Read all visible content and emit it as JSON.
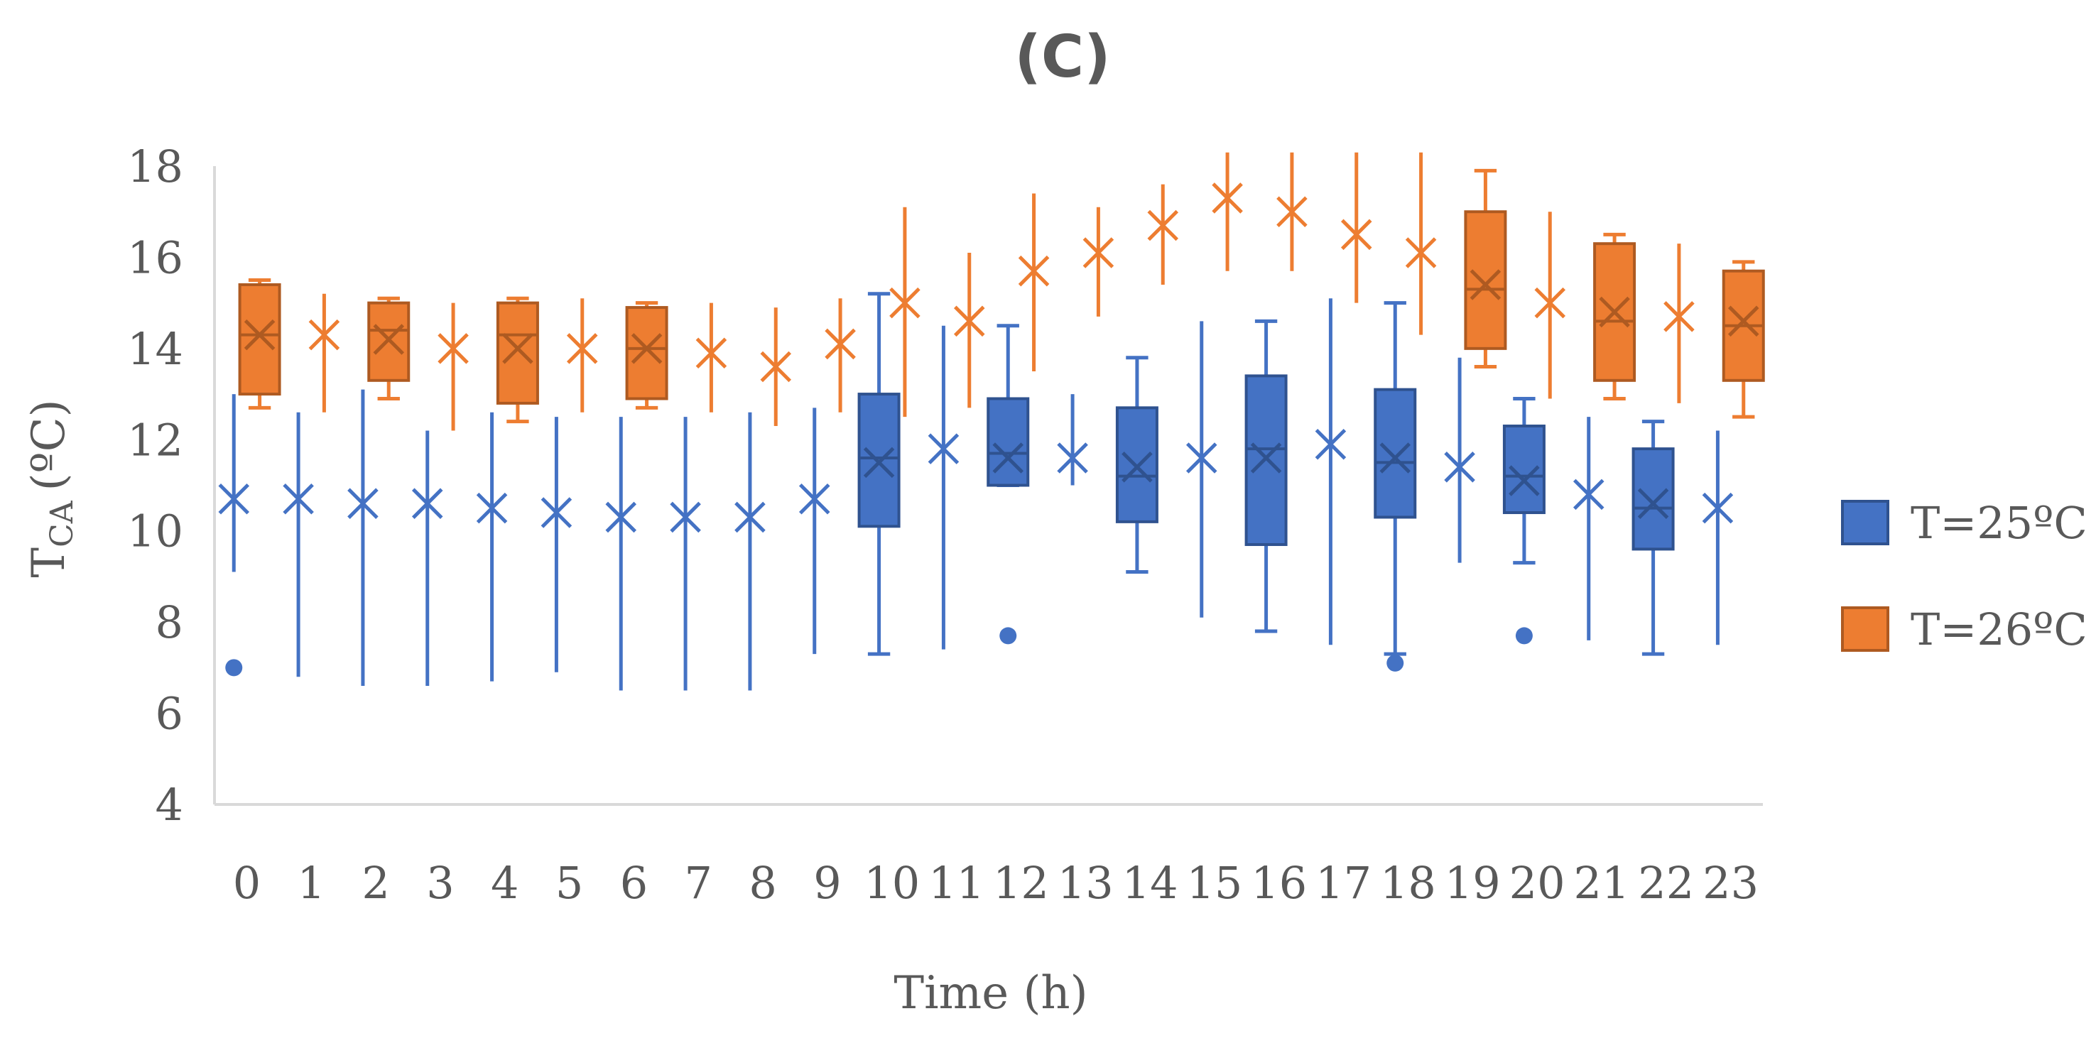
{
  "chart_data": {
    "type": "box",
    "title": "(C)",
    "ylabel": {
      "main": "T",
      "sub": "CA",
      "unit": "(ºC)"
    },
    "xlabel": "Time (h)",
    "ylim": [
      4,
      18
    ],
    "yticks": [
      "4",
      "6",
      "8",
      "10",
      "12",
      "14",
      "16",
      "18"
    ],
    "categories": [
      "0",
      "1",
      "2",
      "3",
      "4",
      "5",
      "6",
      "7",
      "8",
      "9",
      "10",
      "11",
      "12",
      "13",
      "14",
      "15",
      "16",
      "17",
      "18",
      "19",
      "20",
      "21",
      "22",
      "23"
    ],
    "grid": false,
    "legend_position": "right",
    "series": [
      {
        "name": "T=25ºC",
        "color": "#4472C4",
        "boxes": [
          {
            "x": 0,
            "min": 9.1,
            "max": 13.0,
            "mean": 10.7,
            "outliers": [
              7.0
            ]
          },
          {
            "x": 1,
            "min": 6.8,
            "max": 12.6,
            "mean": 10.7
          },
          {
            "x": 2,
            "min": 6.6,
            "max": 13.1,
            "mean": 10.6
          },
          {
            "x": 3,
            "min": 6.6,
            "max": 12.2,
            "mean": 10.6
          },
          {
            "x": 4,
            "min": 6.7,
            "max": 12.6,
            "mean": 10.5
          },
          {
            "x": 5,
            "min": 6.9,
            "max": 12.5,
            "mean": 10.4
          },
          {
            "x": 6,
            "min": 6.5,
            "max": 12.5,
            "mean": 10.3
          },
          {
            "x": 7,
            "min": 6.5,
            "max": 12.5,
            "mean": 10.3
          },
          {
            "x": 8,
            "min": 6.5,
            "max": 12.6,
            "mean": 10.3
          },
          {
            "x": 9,
            "min": 7.3,
            "max": 12.7,
            "mean": 10.7
          },
          {
            "x": 10,
            "min": 7.3,
            "max": 15.2,
            "q1": 10.1,
            "median": 11.6,
            "q3": 13.0,
            "mean": 11.5
          },
          {
            "x": 11,
            "min": 7.4,
            "max": 14.5,
            "mean": 11.8
          },
          {
            "x": 12,
            "min": 11.0,
            "max": 14.5,
            "q1": 11.0,
            "median": 11.7,
            "q3": 12.9,
            "mean": 11.6,
            "outliers": [
              7.7
            ]
          },
          {
            "x": 13,
            "min": 11.0,
            "max": 13.0,
            "mean": 11.6
          },
          {
            "x": 14,
            "min": 9.1,
            "max": 13.8,
            "q1": 10.2,
            "median": 11.2,
            "q3": 12.7,
            "mean": 11.4
          },
          {
            "x": 15,
            "min": 8.1,
            "max": 14.6,
            "mean": 11.6
          },
          {
            "x": 16,
            "min": 7.8,
            "max": 14.6,
            "q1": 9.7,
            "median": 11.8,
            "q3": 13.4,
            "mean": 11.6
          },
          {
            "x": 17,
            "min": 7.5,
            "max": 15.1,
            "mean": 11.9
          },
          {
            "x": 18,
            "min": 7.3,
            "max": 15.0,
            "q1": 10.3,
            "median": 11.5,
            "q3": 13.1,
            "mean": 11.6,
            "outliers": [
              7.1
            ]
          },
          {
            "x": 19,
            "min": 9.3,
            "max": 13.8,
            "mean": 11.4
          },
          {
            "x": 20,
            "min": 9.3,
            "max": 12.9,
            "q1": 10.4,
            "median": 11.2,
            "q3": 12.3,
            "mean": 11.1,
            "outliers": [
              7.7
            ]
          },
          {
            "x": 21,
            "min": 7.6,
            "max": 12.5,
            "mean": 10.8
          },
          {
            "x": 22,
            "min": 7.3,
            "max": 12.4,
            "q1": 9.6,
            "median": 10.5,
            "q3": 11.8,
            "mean": 10.6
          },
          {
            "x": 23,
            "min": 7.5,
            "max": 12.2,
            "mean": 10.5
          }
        ]
      },
      {
        "name": "T=26ºC",
        "color": "#ED7D31",
        "boxes": [
          {
            "x": 0,
            "min": 12.7,
            "max": 15.5,
            "q1": 13.0,
            "median": 14.3,
            "q3": 15.4,
            "mean": 14.3
          },
          {
            "x": 1,
            "min": 12.6,
            "max": 15.2,
            "mean": 14.3
          },
          {
            "x": 2,
            "min": 12.9,
            "max": 15.1,
            "q1": 13.3,
            "median": 14.4,
            "q3": 15.0,
            "mean": 14.2
          },
          {
            "x": 3,
            "min": 12.2,
            "max": 15.0,
            "mean": 14.0
          },
          {
            "x": 4,
            "min": 12.4,
            "max": 15.1,
            "q1": 12.8,
            "median": 14.3,
            "q3": 15.0,
            "mean": 14.0
          },
          {
            "x": 5,
            "min": 12.6,
            "max": 15.1,
            "mean": 14.0
          },
          {
            "x": 6,
            "min": 12.7,
            "max": 15.0,
            "q1": 12.9,
            "median": 14.0,
            "q3": 14.9,
            "mean": 14.0
          },
          {
            "x": 7,
            "min": 12.6,
            "max": 15.0,
            "mean": 13.9
          },
          {
            "x": 8,
            "min": 12.3,
            "max": 14.9,
            "mean": 13.6
          },
          {
            "x": 9,
            "min": 12.6,
            "max": 15.1,
            "mean": 14.1
          },
          {
            "x": 10,
            "min": 12.5,
            "max": 17.1,
            "mean": 15.0
          },
          {
            "x": 11,
            "min": 12.7,
            "max": 16.1,
            "mean": 14.6
          },
          {
            "x": 12,
            "min": 13.5,
            "max": 17.4,
            "mean": 15.7
          },
          {
            "x": 13,
            "min": 14.7,
            "max": 17.1,
            "mean": 16.1
          },
          {
            "x": 14,
            "min": 15.4,
            "max": 17.6,
            "mean": 16.7
          },
          {
            "x": 15,
            "min": 15.7,
            "max": 18.3,
            "mean": 17.3
          },
          {
            "x": 16,
            "min": 15.7,
            "max": 18.3,
            "mean": 17.0
          },
          {
            "x": 17,
            "min": 15.0,
            "max": 18.3,
            "mean": 16.5
          },
          {
            "x": 18,
            "min": 14.3,
            "max": 18.3,
            "mean": 16.1
          },
          {
            "x": 19,
            "min": 13.6,
            "max": 17.9,
            "q1": 14.0,
            "median": 15.3,
            "q3": 17.0,
            "mean": 15.4
          },
          {
            "x": 20,
            "min": 12.9,
            "max": 17.0,
            "mean": 15.0
          },
          {
            "x": 21,
            "min": 12.9,
            "max": 16.5,
            "q1": 13.3,
            "median": 14.6,
            "q3": 16.3,
            "mean": 14.8
          },
          {
            "x": 22,
            "min": 12.8,
            "max": 16.3,
            "mean": 14.7
          },
          {
            "x": 23,
            "min": 12.5,
            "max": 15.9,
            "q1": 13.3,
            "median": 14.5,
            "q3": 15.7,
            "mean": 14.6
          }
        ]
      }
    ]
  }
}
